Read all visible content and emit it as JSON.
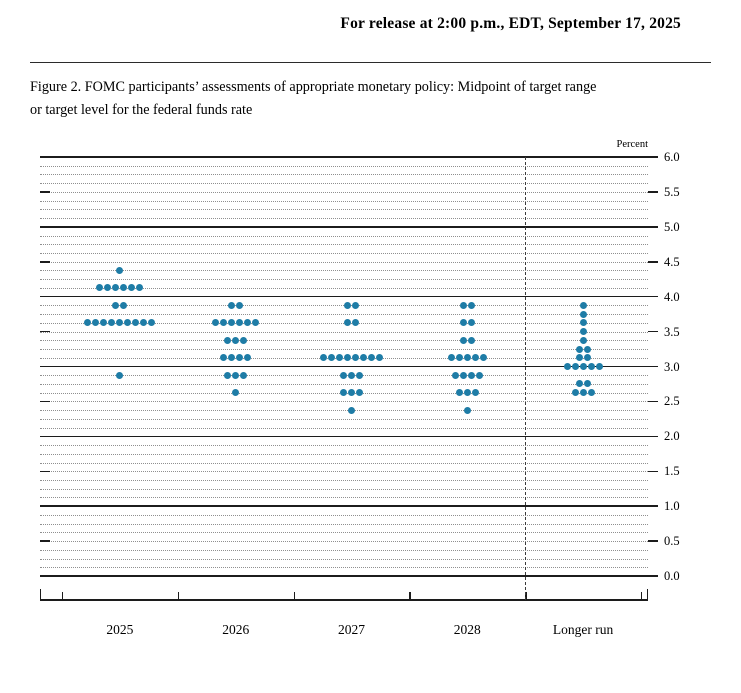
{
  "header": {
    "release_line": "For release at 2:00 p.m., EDT, September 17, 2025"
  },
  "figure": {
    "caption": "Figure 2. FOMC participants’ assessments of appropriate monetary policy: Midpoint of target range\nor target level for the federal funds rate"
  },
  "chart_data": {
    "type": "scatter",
    "subtype": "fomc-dot-plot",
    "title": "FOMC participants' assessments of appropriate monetary policy: Midpoint of target range or target level for the federal funds rate",
    "ylabel": "Percent",
    "ylim": [
      0.0,
      6.0
    ],
    "y_tick_step": 0.5,
    "gridline_step": 0.125,
    "solid_line_step": 1.0,
    "grid": true,
    "legend": false,
    "dot_color": "#1E7CA6",
    "y_tick_labels": [
      "6.0",
      "5.5",
      "5.0",
      "4.5",
      "4.0",
      "3.5",
      "3.0",
      "2.5",
      "2.0",
      "1.5",
      "1.0",
      "0.5",
      "0.0"
    ],
    "categories": [
      "2025",
      "2026",
      "2027",
      "2028",
      "Longer run"
    ],
    "separator_after_category_index": 3,
    "participants_per_year": 19,
    "series": [
      {
        "category": "2025",
        "dots": [
          {
            "rate": 4.375,
            "count": 1
          },
          {
            "rate": 4.125,
            "count": 6
          },
          {
            "rate": 3.875,
            "count": 2
          },
          {
            "rate": 3.625,
            "count": 9
          },
          {
            "rate": 2.875,
            "count": 1
          }
        ]
      },
      {
        "category": "2026",
        "dots": [
          {
            "rate": 3.875,
            "count": 2
          },
          {
            "rate": 3.625,
            "count": 6
          },
          {
            "rate": 3.375,
            "count": 3
          },
          {
            "rate": 3.125,
            "count": 4
          },
          {
            "rate": 2.875,
            "count": 3
          },
          {
            "rate": 2.625,
            "count": 1
          }
        ]
      },
      {
        "category": "2027",
        "dots": [
          {
            "rate": 3.875,
            "count": 2
          },
          {
            "rate": 3.625,
            "count": 2
          },
          {
            "rate": 3.125,
            "count": 8
          },
          {
            "rate": 2.875,
            "count": 3
          },
          {
            "rate": 2.625,
            "count": 3
          },
          {
            "rate": 2.375,
            "count": 1
          }
        ]
      },
      {
        "category": "2028",
        "dots": [
          {
            "rate": 3.875,
            "count": 2
          },
          {
            "rate": 3.625,
            "count": 2
          },
          {
            "rate": 3.375,
            "count": 2
          },
          {
            "rate": 3.125,
            "count": 5
          },
          {
            "rate": 2.875,
            "count": 4
          },
          {
            "rate": 2.625,
            "count": 3
          },
          {
            "rate": 2.375,
            "count": 1
          }
        ]
      },
      {
        "category": "Longer run",
        "dots": [
          {
            "rate": 3.875,
            "count": 1
          },
          {
            "rate": 3.75,
            "count": 1
          },
          {
            "rate": 3.625,
            "count": 1
          },
          {
            "rate": 3.5,
            "count": 1
          },
          {
            "rate": 3.375,
            "count": 1
          },
          {
            "rate": 3.25,
            "count": 2
          },
          {
            "rate": 3.125,
            "count": 2
          },
          {
            "rate": 3.0,
            "count": 5
          },
          {
            "rate": 2.75,
            "count": 2
          },
          {
            "rate": 2.625,
            "count": 3
          }
        ]
      }
    ]
  }
}
